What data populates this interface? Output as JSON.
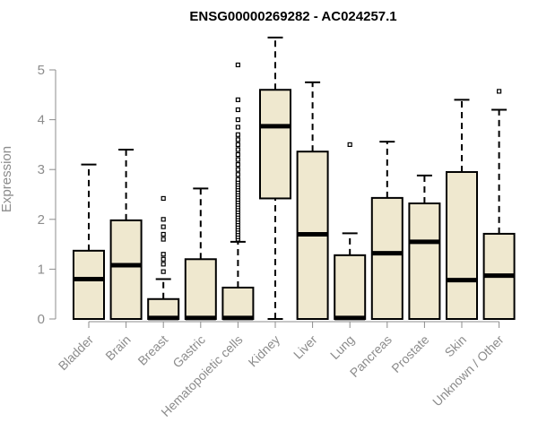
{
  "chart_data": {
    "type": "boxplot",
    "title": "ENSG00000269282 - AC024257.1",
    "xlabel": "",
    "ylabel": "Expression",
    "ylim": [
      0,
      5.7
    ],
    "yticks": [
      0,
      1,
      2,
      3,
      4,
      5
    ],
    "grid": false,
    "box_fill": "#efe8cf",
    "box_stroke": "#000000",
    "categories": [
      "Bladder",
      "Brain",
      "Breast",
      "Gastric",
      "Hematopoietic cells",
      "Kidney",
      "Liver",
      "Lung",
      "Pancreas",
      "Prostate",
      "Skin",
      "Unknown / Other"
    ],
    "boxes": [
      {
        "name": "Bladder",
        "low": 0,
        "q1": 0,
        "median": 0.8,
        "q3": 1.37,
        "high": 3.1,
        "outliers": []
      },
      {
        "name": "Brain",
        "low": 0,
        "q1": 0,
        "median": 1.08,
        "q3": 1.98,
        "high": 3.4,
        "outliers": []
      },
      {
        "name": "Breast",
        "low": 0,
        "q1": 0,
        "median": 0.02,
        "q3": 0.4,
        "high": 0.8,
        "outliers": [
          0.95,
          1.1,
          1.2,
          1.3,
          1.6,
          1.7,
          1.85,
          2.0,
          2.42
        ]
      },
      {
        "name": "Gastric",
        "low": 0,
        "q1": 0,
        "median": 0.02,
        "q3": 1.2,
        "high": 2.62,
        "outliers": []
      },
      {
        "name": "Hematopoietic cells",
        "low": 0,
        "q1": 0,
        "median": 0.02,
        "q3": 0.63,
        "high": 1.55,
        "outliers": [
          1.6,
          1.65,
          1.7,
          1.75,
          1.8,
          1.85,
          1.9,
          1.95,
          2.0,
          2.05,
          2.1,
          2.15,
          2.2,
          2.25,
          2.3,
          2.35,
          2.4,
          2.45,
          2.5,
          2.55,
          2.6,
          2.65,
          2.7,
          2.75,
          2.8,
          2.9,
          3.0,
          3.1,
          3.2,
          3.3,
          3.4,
          3.5,
          3.6,
          3.7,
          3.85,
          4.0,
          4.2,
          4.4,
          5.1
        ]
      },
      {
        "name": "Kidney",
        "low": 0,
        "q1": 2.42,
        "median": 3.87,
        "q3": 4.6,
        "high": 5.65,
        "outliers": []
      },
      {
        "name": "Liver",
        "low": 0,
        "q1": 0,
        "median": 1.7,
        "q3": 3.36,
        "high": 4.75,
        "outliers": []
      },
      {
        "name": "Lung",
        "low": 0,
        "q1": 0,
        "median": 0.02,
        "q3": 1.28,
        "high": 1.72,
        "outliers": [
          3.5
        ]
      },
      {
        "name": "Pancreas",
        "low": 0,
        "q1": 0,
        "median": 1.32,
        "q3": 2.43,
        "high": 3.56,
        "outliers": []
      },
      {
        "name": "Prostate",
        "low": 0,
        "q1": 0,
        "median": 1.55,
        "q3": 2.32,
        "high": 2.88,
        "outliers": []
      },
      {
        "name": "Skin",
        "low": 0,
        "q1": 0,
        "median": 0.78,
        "q3": 2.95,
        "high": 4.4,
        "outliers": []
      },
      {
        "name": "Unknown / Other",
        "low": 0,
        "q1": 0,
        "median": 0.87,
        "q3": 1.71,
        "high": 4.2,
        "outliers": [
          4.57
        ]
      }
    ]
  }
}
